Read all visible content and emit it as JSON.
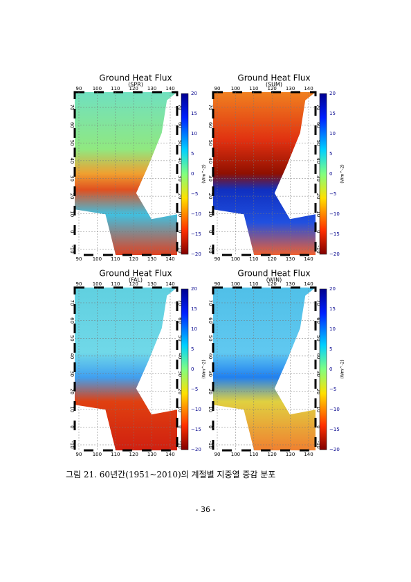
{
  "panels": [
    {
      "title": "Ground Heat Flux",
      "subtitle": "(SPR)"
    },
    {
      "title": "Ground Heat Flux",
      "subtitle": "(SUM)"
    },
    {
      "title": "Ground Heat Flux",
      "subtitle": "(FAL)"
    },
    {
      "title": "Ground Heat Flux",
      "subtitle": "(WIN)"
    }
  ],
  "lon_ticks": [
    "90",
    "100",
    "110",
    "120",
    "130",
    "140"
  ],
  "lat_ticks": [
    "-10",
    "0",
    "10",
    "20",
    "30",
    "40",
    "50",
    "60",
    "70"
  ],
  "colorbar": {
    "ticks": [
      "20",
      "15",
      "10",
      "5",
      "0",
      "−5",
      "−10",
      "−15",
      "−20"
    ],
    "label": "(Wm^-2)"
  },
  "caption": "그림 21. 60년간(1951~2010)의 계절별 지중열 증감 분포",
  "page_number": "- 36 -"
}
